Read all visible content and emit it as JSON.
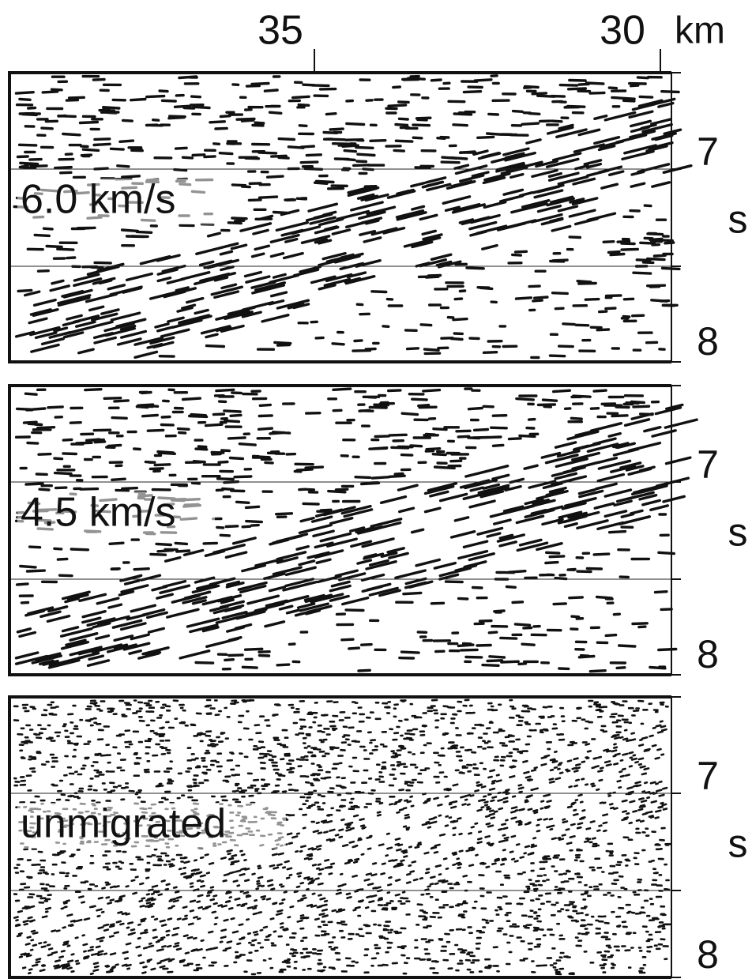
{
  "top_axis": {
    "ticks": [
      "35",
      "30"
    ],
    "unit": "km"
  },
  "panels": [
    {
      "label": "6.0 km/s",
      "y_ticks": [
        "7",
        "8"
      ],
      "y_unit": "s"
    },
    {
      "label": "4.5 km/s",
      "y_ticks": [
        "7",
        "8"
      ],
      "y_unit": "s"
    },
    {
      "label": "unmigrated",
      "y_ticks": [
        "7",
        "8"
      ],
      "y_unit": "s"
    }
  ]
}
